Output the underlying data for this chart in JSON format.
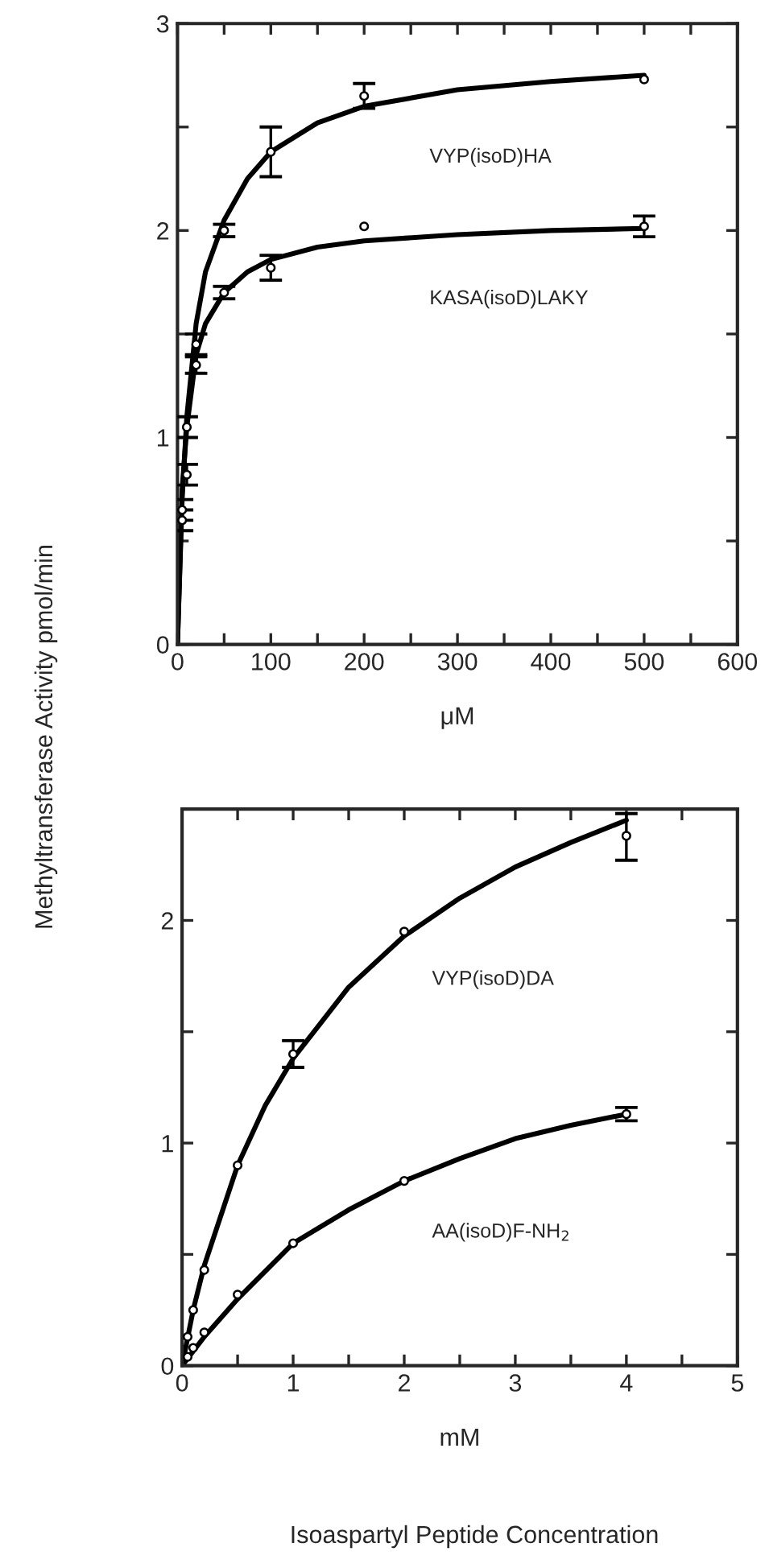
{
  "chart_data": [
    {
      "type": "scatter",
      "xlabel": "μM",
      "ylabel": "Methyltransferase Activity pmol/min",
      "xlim": [
        0,
        600
      ],
      "ylim": [
        0,
        3
      ],
      "xticks": [
        0,
        {
          "value": 50,
          "label": null
        },
        100,
        {
          "value": 150,
          "label": null
        },
        200,
        {
          "value": 250,
          "label": null
        },
        300,
        {
          "value": 350,
          "label": null
        },
        400,
        {
          "value": 450,
          "label": null
        },
        500,
        {
          "value": 550,
          "label": null
        },
        600
      ],
      "yticks": [
        0,
        {
          "value": 0.5,
          "label": null
        },
        1,
        {
          "value": 1.5,
          "label": null
        },
        2,
        {
          "value": 2.5,
          "label": null
        },
        3
      ],
      "grid": false,
      "legend": false,
      "series": [
        {
          "marker": "circle",
          "color": "#000000",
          "x": [
            5,
            10,
            20,
            50,
            100,
            200,
            500
          ],
          "values": [
            0.65,
            1.05,
            1.45,
            2.0,
            2.38,
            2.65,
            2.73
          ],
          "errors": [
            0.05,
            0.05,
            0.05,
            0.03,
            0.12,
            0.06,
            null
          ]
        },
        {
          "marker": "circle",
          "color": "#000000",
          "x": [
            5,
            10,
            20,
            50,
            100,
            200,
            500
          ],
          "values": [
            0.6,
            0.82,
            1.35,
            1.7,
            1.82,
            2.02,
            2.02
          ],
          "errors": [
            0.05,
            0.05,
            0.04,
            0.03,
            0.06,
            null,
            0.05
          ]
        },
        {
          "type": "line",
          "name": "VYP(isoD)HA",
          "color": "#000000",
          "line_style": "solid",
          "x": [
            0,
            5,
            10,
            20,
            30,
            50,
            75,
            100,
            150,
            200,
            300,
            400,
            500
          ],
          "values": [
            0,
            0.7,
            1.1,
            1.55,
            1.8,
            2.05,
            2.25,
            2.38,
            2.52,
            2.6,
            2.68,
            2.72,
            2.75
          ]
        },
        {
          "type": "line",
          "name": "KASA(isoD)LAKY",
          "color": "#000000",
          "line_style": "solid",
          "x": [
            0,
            5,
            10,
            20,
            30,
            50,
            75,
            100,
            150,
            200,
            300,
            400,
            500
          ],
          "values": [
            0,
            0.75,
            1.05,
            1.4,
            1.55,
            1.7,
            1.8,
            1.86,
            1.92,
            1.95,
            1.98,
            2.0,
            2.01
          ]
        }
      ]
    },
    {
      "type": "scatter",
      "xlabel": "mM",
      "xlim": [
        0,
        5
      ],
      "ylim": [
        0,
        2.5
      ],
      "xticks": [
        0,
        {
          "value": 0.5,
          "label": null
        },
        1,
        {
          "value": 1.5,
          "label": null
        },
        2,
        {
          "value": 2.5,
          "label": null
        },
        3,
        {
          "value": 3.5,
          "label": null
        },
        4,
        {
          "value": 4.5,
          "label": null
        },
        5
      ],
      "yticks": [
        0,
        {
          "value": 0.5,
          "label": null
        },
        1,
        {
          "value": 1.5,
          "label": null
        },
        2
      ],
      "grid": false,
      "legend": false,
      "annotations": [
        "Isoaspartyl Peptide Concentration"
      ],
      "series": [
        {
          "marker": "circle",
          "color": "#000000",
          "x": [
            0.05,
            0.1,
            0.2,
            0.5,
            1,
            2,
            4
          ],
          "values": [
            0.13,
            0.25,
            0.43,
            0.9,
            1.4,
            1.95,
            2.38
          ],
          "errors": [
            null,
            null,
            null,
            null,
            0.06,
            null,
            [
              2.27,
              2.48
            ]
          ]
        },
        {
          "marker": "circle",
          "color": "#000000",
          "x": [
            0.05,
            0.1,
            0.2,
            0.5,
            1,
            2,
            4
          ],
          "values": [
            0.04,
            0.08,
            0.15,
            0.32,
            0.55,
            0.83,
            1.13
          ],
          "errors": [
            null,
            null,
            null,
            null,
            null,
            null,
            0.03
          ]
        },
        {
          "type": "line",
          "name": "VYP(isoD)DA",
          "color": "#000000",
          "line_style": "solid",
          "x": [
            0,
            0.1,
            0.2,
            0.5,
            0.75,
            1,
            1.5,
            2,
            2.5,
            3,
            3.5,
            4
          ],
          "values": [
            0,
            0.25,
            0.45,
            0.9,
            1.17,
            1.38,
            1.7,
            1.93,
            2.1,
            2.24,
            2.35,
            2.45
          ]
        },
        {
          "type": "line",
          "name": "AA(isoD)F-NH$_{2}$",
          "color": "#000000",
          "line_style": "solid",
          "x": [
            0,
            0.2,
            0.5,
            1,
            1.5,
            2,
            2.5,
            3,
            3.5,
            4
          ],
          "values": [
            0,
            0.13,
            0.3,
            0.55,
            0.7,
            0.83,
            0.93,
            1.02,
            1.08,
            1.13
          ]
        }
      ]
    }
  ]
}
